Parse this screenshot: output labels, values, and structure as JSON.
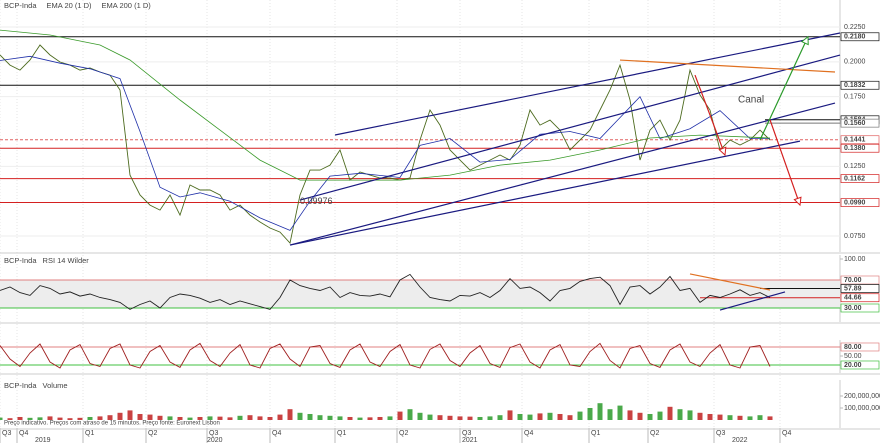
{
  "time_axis": {
    "xlim": [
      0,
      84
    ],
    "quarters": [
      {
        "value": 0,
        "label": "Q3"
      },
      {
        "value": 1.7,
        "label": "Q4"
      },
      {
        "value": 8.3,
        "label": "Q1"
      },
      {
        "value": 14.6,
        "label": "Q2"
      },
      {
        "value": 20.7,
        "label": "Q3"
      },
      {
        "value": 27,
        "label": "Q4"
      },
      {
        "value": 33.5,
        "label": "Q1"
      },
      {
        "value": 39.7,
        "label": "Q2"
      },
      {
        "value": 46,
        "label": "Q3"
      },
      {
        "value": 52.2,
        "label": "Q4"
      },
      {
        "value": 58.9,
        "label": "Q1"
      },
      {
        "value": 64.8,
        "label": "Q2"
      },
      {
        "value": 71.4,
        "label": "Q3"
      },
      {
        "value": 78,
        "label": "Q4"
      }
    ],
    "years": [
      {
        "value": 3.3,
        "label": "2019"
      },
      {
        "value": 20.5,
        "label": "2020"
      },
      {
        "value": 46,
        "label": "2021"
      },
      {
        "value": 73,
        "label": "2022"
      }
    ]
  },
  "chart_data": [
    {
      "type": "line",
      "ylim": [
        0.0635,
        0.2444
      ],
      "yticks": [
        {
          "value": 0.225,
          "label": "0.2250"
        },
        {
          "value": 0.2,
          "label": "0.2000"
        },
        {
          "value": 0.175,
          "label": "0.1750"
        },
        {
          "value": 0.125,
          "label": "0.1250"
        },
        {
          "value": 0.075,
          "label": "0.0750"
        }
      ],
      "grid": true,
      "levels": [
        {
          "value": 0.218,
          "label": "0.2180",
          "color": "#111111",
          "from": 0
        },
        {
          "value": 0.1832,
          "label": "0.1832",
          "color": "#111111",
          "from": 0
        },
        {
          "value": 0.1584,
          "label": "0.1584",
          "color": "#111111",
          "from": 76.5
        },
        {
          "value": 0.156,
          "label": "0.1560",
          "color": "#777777",
          "from": 76.5
        },
        {
          "value": 0.1441,
          "label": "0.1441",
          "color": "#e06060",
          "from": 0
        },
        {
          "value": 0.138,
          "label": "0.1380",
          "color": "#d42020",
          "from": 0
        },
        {
          "value": 0.1162,
          "label": "0.1162",
          "color": "#d42020",
          "from": 0
        },
        {
          "value": 0.099,
          "label": "0.0990",
          "color": "#d42020",
          "from": 0
        }
      ],
      "series": [
        {
          "name": "BCP-Inda",
          "color": "#4d6b1f",
          "values": [
            0.2049,
            0.1977,
            0.1941,
            0.2013,
            0.2121,
            0.2049,
            0.1999,
            0.1977,
            0.1941,
            0.1956,
            0.1927,
            0.1905,
            0.1798,
            0.1187,
            0.1044,
            0.0972,
            0.0936,
            0.1044,
            0.09,
            0.1116,
            0.108,
            0.108,
            0.1044,
            0.0936,
            0.0972,
            0.09,
            0.085,
            0.0807,
            0.0778,
            0.0699,
            0.1044,
            0.1223,
            0.1223,
            0.1259,
            0.1367,
            0.1151,
            0.1209,
            0.1187,
            0.1166,
            0.1166,
            0.1151,
            0.1166,
            0.1439,
            0.1654,
            0.1546,
            0.1367,
            0.1295,
            0.1223,
            0.1259,
            0.1295,
            0.1331,
            0.1295,
            0.1403,
            0.1654,
            0.1546,
            0.1582,
            0.151,
            0.1367,
            0.1439,
            0.151,
            0.1654,
            0.1798,
            0.1977,
            0.1726,
            0.1295,
            0.151,
            0.1582,
            0.1439,
            0.1582,
            0.1941,
            0.1762,
            0.1654,
            0.1367,
            0.1439,
            0.1403,
            0.1439,
            0.151,
            0.1439
          ]
        },
        {
          "name": "EMA 20  (1 D)",
          "color": "#1f2fa8",
          "x": [
            0,
            3,
            6,
            9,
            12,
            14,
            16,
            18,
            20,
            23,
            26,
            29,
            31,
            33,
            36,
            40,
            42,
            45,
            48,
            51,
            54,
            57,
            60,
            62,
            64,
            66,
            69,
            72,
            75,
            77
          ],
          "values": [
            0.201,
            0.204,
            0.199,
            0.195,
            0.188,
            0.15,
            0.11,
            0.103,
            0.106,
            0.1,
            0.088,
            0.079,
            0.1,
            0.118,
            0.12,
            0.117,
            0.14,
            0.145,
            0.128,
            0.13,
            0.148,
            0.15,
            0.145,
            0.16,
            0.175,
            0.145,
            0.152,
            0.165,
            0.145,
            0.145
          ]
        },
        {
          "name": "EMA 200  (1 D)",
          "color": "#3a9a2a",
          "x": [
            0,
            5,
            10,
            13,
            18,
            22,
            26,
            30,
            34,
            40,
            45,
            50,
            55,
            60,
            65,
            70,
            77
          ],
          "values": [
            0.2228,
            0.2193,
            0.2121,
            0.2013,
            0.1726,
            0.151,
            0.1295,
            0.1151,
            0.1151,
            0.1151,
            0.1187,
            0.1259,
            0.1295,
            0.1367,
            0.1453,
            0.1474,
            0.1453
          ]
        }
      ],
      "drawings": [
        {
          "kind": "line",
          "color": "#1a1a80",
          "from": [
            33.5,
            0.1475
          ],
          "to": [
            84,
            0.2207
          ]
        },
        {
          "kind": "line",
          "color": "#1a1a80",
          "from": [
            30,
            0.1008
          ],
          "to": [
            84,
            0.2049
          ]
        },
        {
          "kind": "line",
          "color": "#1a1a80",
          "from": [
            29,
            0.0685
          ],
          "to": [
            83.5,
            0.1704
          ]
        },
        {
          "kind": "line",
          "color": "#1a1a80",
          "from": [
            29,
            0.0685
          ],
          "to": [
            80,
            0.1431
          ]
        },
        {
          "kind": "line",
          "color": "#e07020",
          "from": [
            62,
            0.2013
          ],
          "to": [
            83.5,
            0.1927
          ]
        },
        {
          "kind": "arrow",
          "color": "#d42020",
          "from": [
            69.5,
            0.1905
          ],
          "to": [
            72.5,
            0.1331
          ]
        },
        {
          "kind": "arrow",
          "color": "#d42020",
          "from": [
            77,
            0.1584
          ],
          "to": [
            80,
            0.0972
          ]
        },
        {
          "kind": "arrow",
          "color": "#2a9a2a",
          "from": [
            76,
            0.1439
          ],
          "to": [
            80.8,
            0.218
          ]
        }
      ],
      "annotations": [
        {
          "text": "0,09976",
          "at": [
            30,
            0.0998
          ],
          "color": "#d42020"
        },
        {
          "text": "Canal",
          "at": [
            73.8,
            0.1726
          ],
          "color": "#d42020"
        }
      ]
    },
    {
      "type": "line",
      "source": "BCP-Inda",
      "ylim": [
        10,
        105.7
      ],
      "yticks": [
        {
          "value": 100,
          "label": "100.00"
        },
        {
          "value": 70,
          "label": "70.00"
        },
        {
          "value": 30,
          "label": "30.00"
        }
      ],
      "band": [
        30,
        70
      ],
      "levels": [
        {
          "value": 70,
          "label": "70.00",
          "color": "#e08080",
          "from": 0
        },
        {
          "value": 57.89,
          "label": "57.89",
          "color": "#111111",
          "from": 76
        },
        {
          "value": 44.66,
          "label": "44.66",
          "color": "#d42020",
          "from": 70
        },
        {
          "value": 30,
          "label": "30.00",
          "color": "#40c040",
          "from": 0
        }
      ],
      "series": [
        {
          "name": "RSI 14 Wilder",
          "color": "#222222",
          "values": [
            55,
            60,
            52,
            48,
            62,
            58,
            50,
            53,
            47,
            50,
            45,
            42,
            38,
            28,
            35,
            40,
            30,
            45,
            50,
            48,
            44,
            38,
            42,
            35,
            40,
            36,
            32,
            28,
            45,
            70,
            62,
            58,
            55,
            60,
            45,
            52,
            48,
            47,
            50,
            46,
            70,
            78,
            60,
            45,
            42,
            40,
            48,
            47,
            52,
            45,
            55,
            72,
            58,
            60,
            52,
            40,
            55,
            58,
            68,
            72,
            74,
            62,
            35,
            60,
            62,
            50,
            60,
            75,
            55,
            58,
            38,
            48,
            45,
            50,
            56,
            48,
            52,
            45
          ]
        }
      ],
      "drawings": [
        {
          "kind": "line",
          "color": "#e07020",
          "from": [
            69,
            78.6
          ],
          "to": [
            77,
            55.7
          ]
        },
        {
          "kind": "line",
          "color": "#1a1a80",
          "from": [
            72,
            27.1
          ],
          "to": [
            78.5,
            52.9
          ]
        }
      ]
    },
    {
      "type": "line",
      "ylim": [
        -6.7,
        103.3
      ],
      "yticks": [
        {
          "value": 80,
          "label": "80.00"
        },
        {
          "value": 50,
          "label": "50.00"
        },
        {
          "value": 20,
          "label": "20.00"
        }
      ],
      "levels": [
        {
          "value": 80,
          "label": "80.00",
          "color": "#e08080",
          "from": 0
        },
        {
          "value": 20,
          "label": "20.00",
          "color": "#40c040",
          "from": 0
        }
      ],
      "series": [
        {
          "color": "#a02020",
          "values": [
            85,
            40,
            15,
            60,
            90,
            30,
            10,
            70,
            88,
            25,
            15,
            75,
            90,
            20,
            10,
            65,
            85,
            30,
            12,
            70,
            92,
            35,
            15,
            60,
            88,
            20,
            10,
            75,
            90,
            40,
            15,
            80,
            85,
            25,
            12,
            70,
            90,
            30,
            15,
            65,
            88,
            20,
            10,
            72,
            90,
            35,
            15,
            60,
            85,
            25,
            12,
            78,
            90,
            30,
            10,
            70,
            88,
            20,
            15,
            65,
            92,
            35,
            10,
            75,
            85,
            25,
            12,
            70,
            90,
            30,
            15,
            60,
            88,
            20,
            10,
            80,
            85,
            15
          ]
        }
      ]
    },
    {
      "type": "bar",
      "source": "BCP-Inda",
      "ylim": [
        -66700000,
        333300000
      ],
      "yticks": [
        {
          "value": 200000000,
          "label": "200,000,000"
        },
        {
          "value": 100000000,
          "label": "100,000,000"
        }
      ],
      "note": "Preço indicativo. Preços com atraso de 15 minutos. Preço fonte: Euronext Lisbon",
      "series": [
        {
          "name": "Volume",
          "color": "#2a9a2a",
          "down_color": "#c02020",
          "values": [
            20000000,
            15000000,
            25000000,
            18000000,
            22000000,
            30000000,
            20000000,
            15000000,
            18000000,
            25000000,
            30000000,
            40000000,
            60000000,
            80000000,
            50000000,
            45000000,
            35000000,
            30000000,
            25000000,
            20000000,
            25000000,
            30000000,
            28000000,
            22000000,
            35000000,
            40000000,
            30000000,
            25000000,
            45000000,
            90000000,
            60000000,
            50000000,
            40000000,
            35000000,
            30000000,
            25000000,
            20000000,
            22000000,
            25000000,
            30000000,
            70000000,
            90000000,
            60000000,
            45000000,
            40000000,
            35000000,
            30000000,
            28000000,
            25000000,
            30000000,
            40000000,
            80000000,
            50000000,
            45000000,
            55000000,
            60000000,
            50000000,
            40000000,
            70000000,
            100000000,
            140000000,
            90000000,
            120000000,
            80000000,
            60000000,
            50000000,
            70000000,
            110000000,
            90000000,
            80000000,
            60000000,
            50000000,
            45000000,
            40000000,
            35000000,
            30000000,
            40000000,
            30000000
          ]
        }
      ]
    }
  ]
}
